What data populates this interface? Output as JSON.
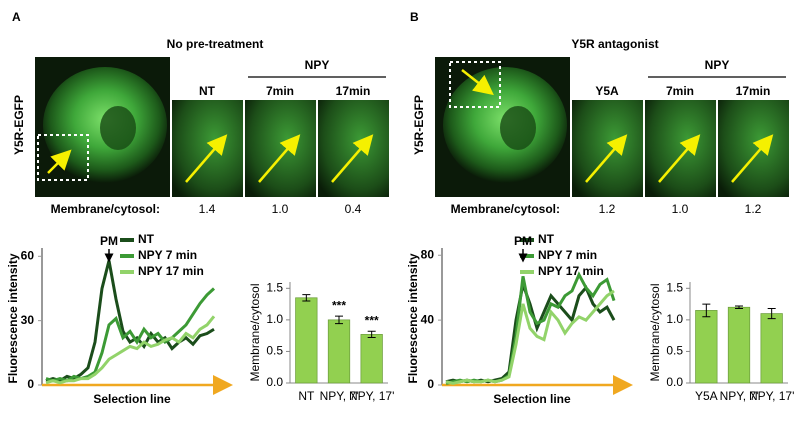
{
  "panels": [
    {
      "label": "A",
      "title": "No pre-treatment",
      "image_label": "Y5R-EGFP",
      "group_header": "NPY",
      "column_headers": [
        "NT",
        "7min",
        "17min"
      ],
      "ratio_label": "Membrane/cytosol:",
      "ratios": [
        "1.4",
        "1.0",
        "0.4"
      ]
    },
    {
      "label": "B",
      "title": "Y5R antagonist",
      "image_label": "Y5R-EGFP",
      "group_header": "NPY",
      "column_headers": [
        "Y5A",
        "7min",
        "17min"
      ],
      "ratio_label": "Membrane/cytosol:",
      "ratios": [
        "1.2",
        "1.0",
        "1.2"
      ]
    }
  ],
  "chart_data": [
    {
      "type": "line",
      "ylabel": "Fluorescence intensity",
      "xlabel": "Selection line",
      "annotation": "PM",
      "ylim": [
        0,
        62
      ],
      "yticks": [
        0,
        30,
        60
      ],
      "series": [
        {
          "name": "NT",
          "color": "#1b4d1b",
          "values": [
            2,
            3,
            2,
            4,
            3,
            5,
            8,
            20,
            45,
            58,
            40,
            25,
            20,
            22,
            18,
            24,
            20,
            22,
            17,
            20,
            22,
            19,
            23,
            24,
            26
          ]
        },
        {
          "name": "NPY 7 min",
          "color": "#3c9a35",
          "values": [
            3,
            2,
            3,
            2,
            4,
            3,
            4,
            6,
            15,
            28,
            31,
            22,
            25,
            20,
            26,
            22,
            24,
            20,
            22,
            25,
            28,
            33,
            38,
            42,
            45
          ]
        },
        {
          "name": "NPY 17 min",
          "color": "#92d36a",
          "values": [
            1,
            2,
            1,
            2,
            2,
            3,
            3,
            5,
            8,
            12,
            14,
            16,
            18,
            17,
            20,
            18,
            19,
            21,
            22,
            20,
            24,
            22,
            26,
            28,
            32
          ]
        }
      ]
    },
    {
      "type": "bar",
      "ylabel": "Membrane/cytosol",
      "categories": [
        "NT",
        "NPY, 7'",
        "NPY, 17'"
      ],
      "values": [
        1.35,
        1.0,
        0.77
      ],
      "errors": [
        0.05,
        0.06,
        0.05
      ],
      "significance": [
        null,
        "***",
        "***"
      ],
      "color": "#92d050",
      "ylim": [
        0,
        1.6
      ],
      "yticks": [
        {
          "value": 0,
          "label": "0.0"
        },
        {
          "value": 0.5,
          "label": "0.5"
        },
        {
          "value": 1,
          "label": "1.0"
        },
        {
          "value": 1.5,
          "label": "1.5"
        }
      ]
    },
    {
      "type": "line",
      "ylabel": "Fluorescence intensity",
      "xlabel": "Selection line",
      "annotation": "PM",
      "ylim": [
        0,
        82
      ],
      "yticks": [
        0,
        40,
        80
      ],
      "series": [
        {
          "name": "NT",
          "color": "#1b4d1b",
          "values": [
            2,
            3,
            2,
            3,
            2,
            3,
            2,
            3,
            4,
            8,
            40,
            62,
            50,
            35,
            45,
            55,
            50,
            45,
            40,
            55,
            60,
            50,
            45,
            48,
            40
          ]
        },
        {
          "name": "NPY 7 min",
          "color": "#3c9a35",
          "values": [
            1,
            2,
            3,
            2,
            3,
            2,
            3,
            2,
            3,
            6,
            30,
            67,
            45,
            38,
            40,
            50,
            48,
            55,
            58,
            68,
            60,
            55,
            62,
            65,
            52
          ]
        },
        {
          "name": "NPY 17 min",
          "color": "#92d36a",
          "values": [
            2,
            1,
            2,
            3,
            2,
            2,
            3,
            2,
            3,
            5,
            25,
            50,
            35,
            30,
            28,
            45,
            40,
            32,
            38,
            42,
            40,
            45,
            50,
            55,
            58
          ]
        }
      ]
    },
    {
      "type": "bar",
      "ylabel": "Membrane/cytosol",
      "categories": [
        "Y5A",
        "NPY, 7'",
        "NPY, 17'"
      ],
      "values": [
        1.15,
        1.2,
        1.1
      ],
      "errors": [
        0.1,
        0.02,
        0.08
      ],
      "color": "#92d050",
      "ylim": [
        0,
        1.6
      ],
      "yticks": [
        {
          "value": 0,
          "label": "0.0"
        },
        {
          "value": 0.5,
          "label": "0.5"
        },
        {
          "value": 1,
          "label": "1.0"
        },
        {
          "value": 1.5,
          "label": "1.5"
        }
      ]
    }
  ]
}
